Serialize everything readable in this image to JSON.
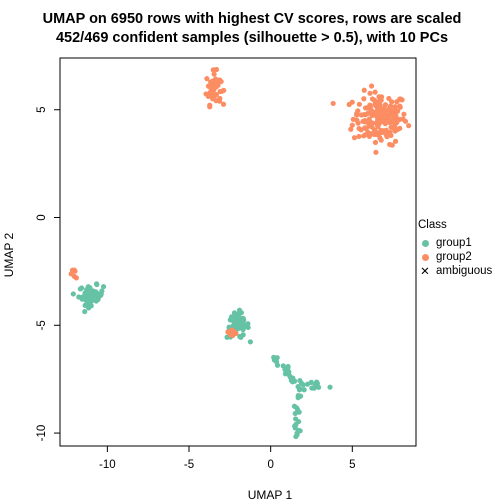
{
  "titles": {
    "line1": "UMAP on 6950 rows with highest CV scores, rows are scaled",
    "line2": "452/469 confident samples (silhouette > 0.5), with 10 PCs"
  },
  "chart_data": {
    "type": "scatter",
    "title": "UMAP on 6950 rows with highest CV scores, rows are scaled\n452/469 confident samples (silhouette > 0.5), with 10 PCs",
    "xlabel": "UMAP 1",
    "ylabel": "UMAP 2",
    "xlim": [
      -12.9,
      8.9
    ],
    "ylim": [
      -10.6,
      7.4
    ],
    "xticks": [
      -10,
      -5,
      0,
      5
    ],
    "yticks": [
      -10,
      -5,
      0,
      5
    ],
    "grid": false,
    "legend": {
      "title": "Class",
      "position": "right"
    },
    "colors": {
      "group1": "#66c2a5",
      "group2": "#fc8d62",
      "ambiguous": "#000000"
    },
    "clusters": [
      {
        "group": "group2",
        "center": [
          6.7,
          4.6
        ],
        "sx": 1.1,
        "sy": 0.8,
        "n": 180
      },
      {
        "group": "group2",
        "center": [
          -3.5,
          6.0
        ],
        "sx": 0.3,
        "sy": 0.5,
        "n": 55
      },
      {
        "group": "group1",
        "center": [
          -11.0,
          -3.6
        ],
        "sx": 0.5,
        "sy": 0.3,
        "n": 55
      },
      {
        "group": "group2",
        "center": [
          -12.0,
          -2.6
        ],
        "sx": 0.2,
        "sy": 0.15,
        "n": 6
      },
      {
        "group": "group1",
        "center": [
          -2.0,
          -5.0
        ],
        "sx": 0.45,
        "sy": 0.4,
        "n": 60
      },
      {
        "group": "group2",
        "center": [
          -2.3,
          -5.3
        ],
        "sx": 0.2,
        "sy": 0.2,
        "n": 8
      },
      {
        "group": "group1",
        "path": [
          [
            0.2,
            -6.5
          ],
          [
            1.1,
            -7.3
          ],
          [
            2.0,
            -7.9
          ],
          [
            3.6,
            -7.7
          ]
        ],
        "n": 35
      },
      {
        "group": "group1",
        "path": [
          [
            1.8,
            -8.0
          ],
          [
            1.6,
            -9.3
          ],
          [
            1.5,
            -10.1
          ]
        ],
        "n": 20
      }
    ],
    "series": [
      {
        "name": "group1"
      },
      {
        "name": "group2"
      },
      {
        "name": "ambiguous"
      }
    ]
  },
  "legend_labels": {
    "title": "Class",
    "group1": "group1",
    "group2": "group2",
    "ambiguous": "ambiguous"
  }
}
